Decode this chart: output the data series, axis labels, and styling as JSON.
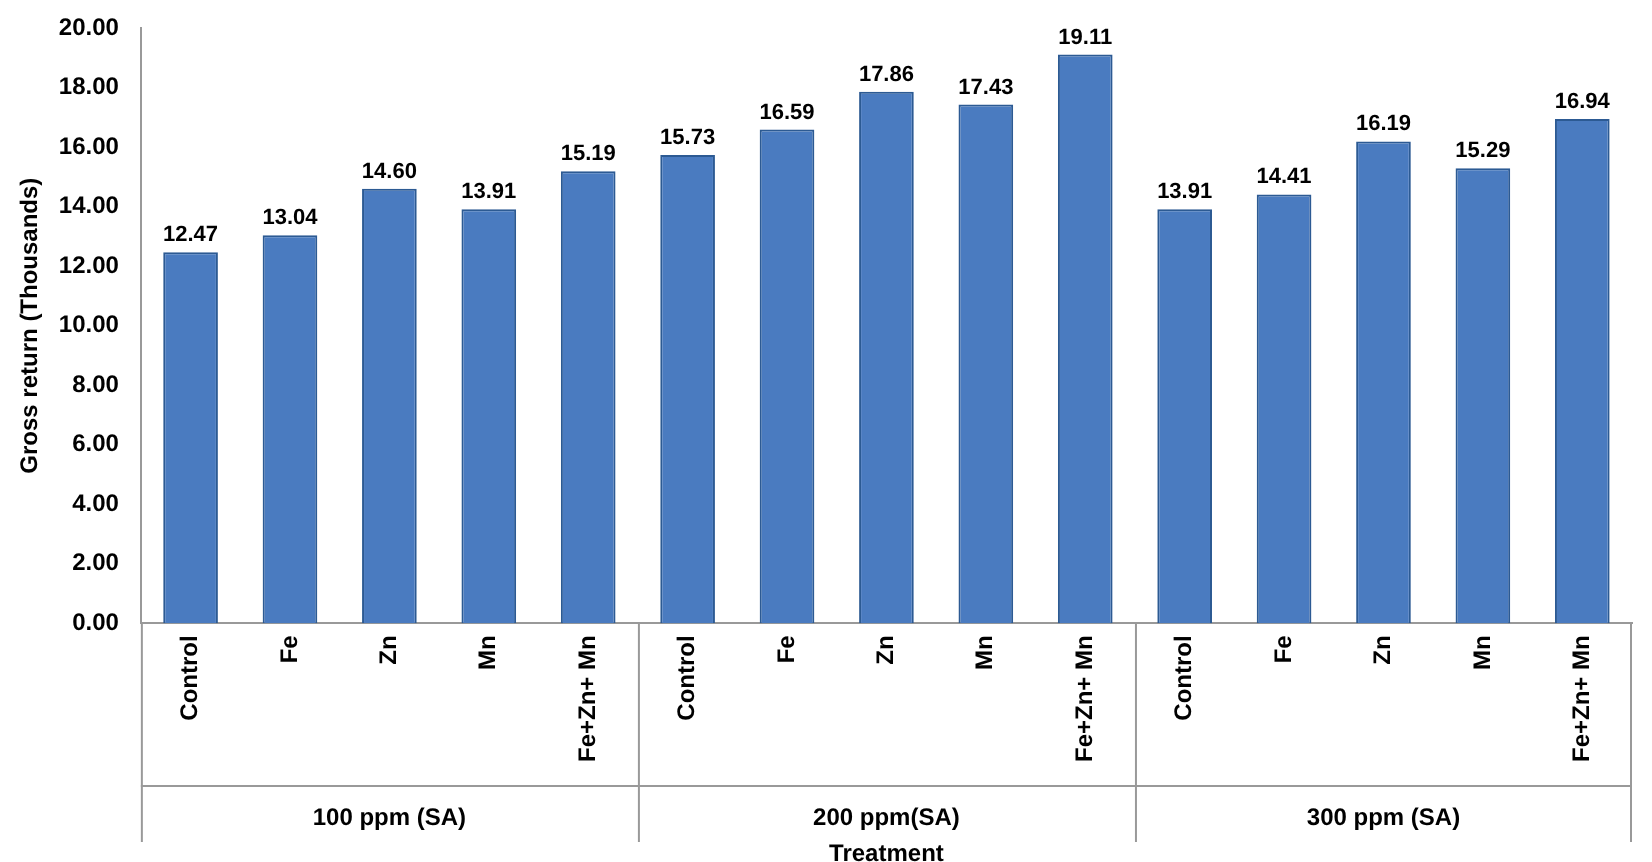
{
  "chart_data": {
    "type": "bar",
    "xlabel": "Treatment",
    "ylabel": "Gross return (Thousands)",
    "categories": [
      "Control",
      "Fe",
      "Zn",
      "Mn",
      "Fe+Zn+ Mn",
      "Control",
      "Fe",
      "Zn",
      "Mn",
      "Fe+Zn+ Mn",
      "Control",
      "Fe",
      "Zn",
      "Mn",
      "Fe+Zn+ Mn"
    ],
    "values": [
      12.47,
      13.04,
      14.6,
      13.91,
      15.19,
      15.73,
      16.59,
      17.86,
      17.43,
      19.11,
      13.91,
      14.41,
      16.19,
      15.29,
      16.94
    ],
    "color": "#4a7bc0",
    "ylim": [
      0,
      20
    ],
    "yticks": [
      {
        "value": 0,
        "label": "0.00"
      },
      {
        "value": 2,
        "label": "2.00"
      },
      {
        "value": 4,
        "label": "4.00"
      },
      {
        "value": 6,
        "label": "6.00"
      },
      {
        "value": 8,
        "label": "8.00"
      },
      {
        "value": 10,
        "label": "10.00"
      },
      {
        "value": 12,
        "label": "12.00"
      },
      {
        "value": 14,
        "label": "14.00"
      },
      {
        "value": 16,
        "label": "16.00"
      },
      {
        "value": 18,
        "label": "18.00"
      },
      {
        "value": 20,
        "label": "20.00"
      }
    ],
    "value_labels": [
      "12.47",
      "13.04",
      "14.60",
      "13.91",
      "15.19",
      "15.73",
      "16.59",
      "17.86",
      "17.43",
      "19.11",
      "13.91",
      "14.41",
      "16.19",
      "15.29",
      "16.94"
    ],
    "annotations": [
      "100 ppm (SA)",
      "200 ppm(SA)",
      "300 ppm (SA)"
    ]
  }
}
